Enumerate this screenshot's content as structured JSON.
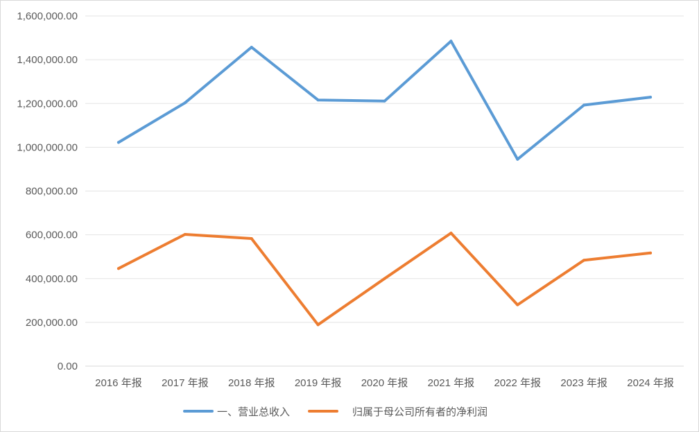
{
  "chart_data": {
    "type": "line",
    "title": "",
    "xlabel": "",
    "ylabel": "",
    "categories": [
      "2016 年报",
      "2017 年报",
      "2018 年报",
      "2019 年报",
      "2020 年报",
      "2021 年报",
      "2022 年报",
      "2023 年报",
      "2024 年报"
    ],
    "ylim": [
      0,
      1600000
    ],
    "y_ticks": [
      "0.00",
      "200,000.00",
      "400,000.00",
      "600,000.00",
      "800,000.00",
      "1,000,000.00",
      "1,200,000.00",
      "1,400,000.00",
      "1,600,000.00"
    ],
    "grid": true,
    "legend_position": "bottom",
    "series": [
      {
        "name": "一、营业总收入",
        "color": "#5b9bd5",
        "values": [
          1022000,
          1203000,
          1457000,
          1216000,
          1211000,
          1485000,
          945000,
          1193000,
          1229000
        ]
      },
      {
        "name": "归属于母公司所有者的净利润",
        "color": "#ed7d31",
        "values": [
          446000,
          602000,
          583000,
          189000,
          400000,
          608000,
          280000,
          484000,
          517000
        ]
      }
    ]
  }
}
